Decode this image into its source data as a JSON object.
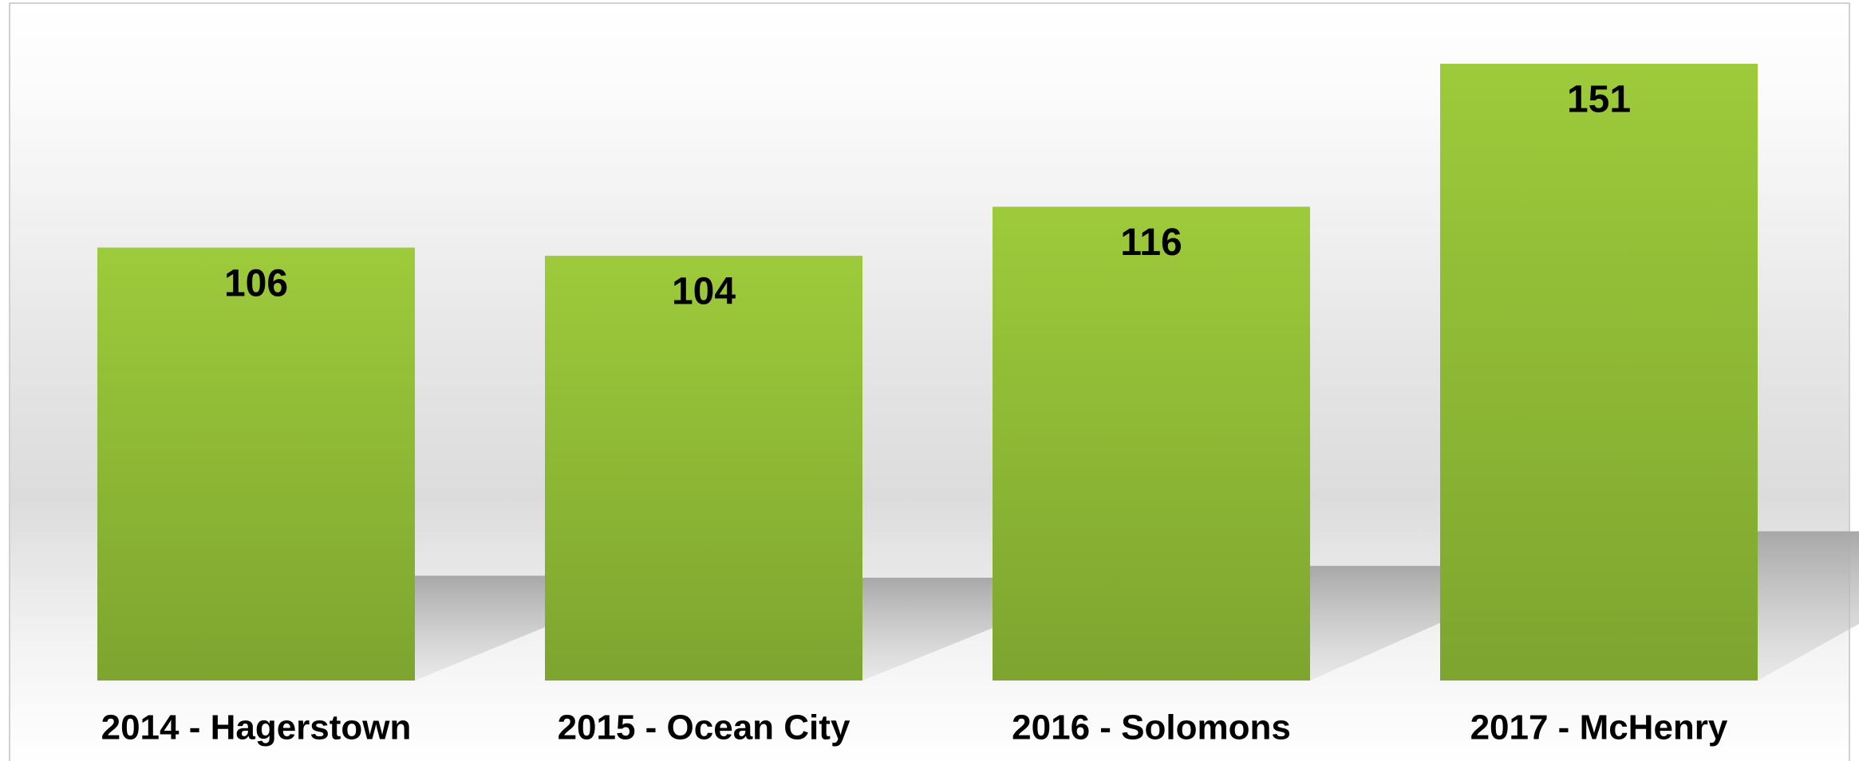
{
  "chart_data": {
    "type": "bar",
    "categories": [
      "2014 - Hagerstown",
      "2015 - Ocean City",
      "2016 - Solomons",
      "2017 - McHenry"
    ],
    "values": [
      106,
      104,
      116,
      151
    ],
    "color": "#8db733"
  }
}
